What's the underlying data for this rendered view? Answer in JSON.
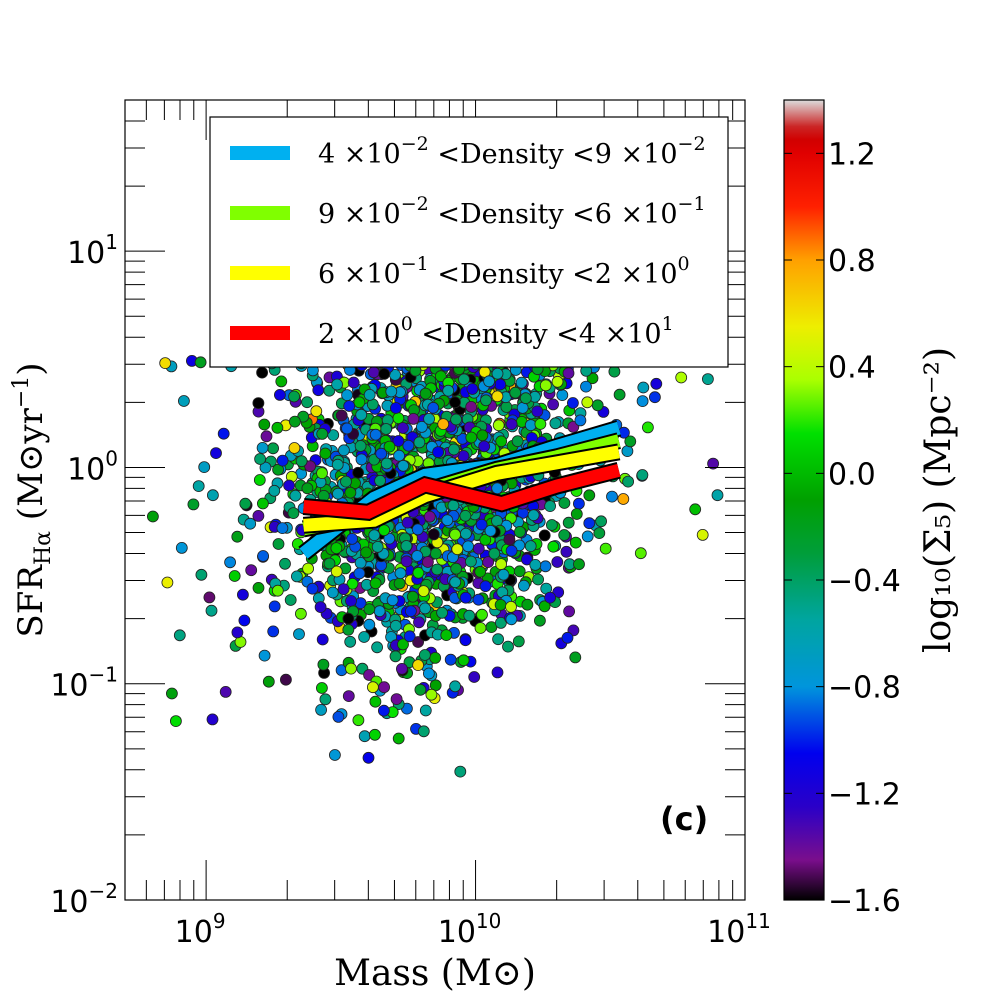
{
  "chart_data": {
    "type": "scatter",
    "xscale": "log",
    "yscale": "log",
    "xlim": [
      500000000.0,
      100000000000.0
    ],
    "ylim": [
      0.01,
      50
    ],
    "xlabel": "Mass (M⊙)",
    "ylabel": "SFR",
    "ylabel_sub": "Hα",
    "ylabel_units": "(M⊙yr",
    "ylabel_units_sup": "−1",
    "ylabel_units_close": ")",
    "x_ticks": [
      {
        "value": 1000000000.0,
        "base": "10",
        "exp": "9"
      },
      {
        "value": 10000000000.0,
        "base": "10",
        "exp": "10"
      },
      {
        "value": 100000000000.0,
        "base": "10",
        "exp": "11"
      }
    ],
    "y_ticks": [
      {
        "value": 0.01,
        "base": "10",
        "exp": "−2"
      },
      {
        "value": 0.1,
        "base": "10",
        "exp": "−1"
      },
      {
        "value": 1,
        "base": "10",
        "exp": "0"
      },
      {
        "value": 10,
        "base": "10",
        "exp": "1"
      }
    ],
    "panel_label": "(c)",
    "colorbar": {
      "label": "log₁₀(Σ₅)  (Mpc⁻²)",
      "range": [
        -1.6,
        1.4
      ],
      "ticks": [
        "1.2",
        "0.8",
        "0.4",
        "0.0",
        "−0.4",
        "−0.8",
        "−1.2",
        "−1.6"
      ],
      "tick_values": [
        1.2,
        0.8,
        0.4,
        0.0,
        -0.4,
        -0.8,
        -1.2,
        -1.6
      ],
      "colormap_stops": [
        {
          "v": -1.6,
          "color": "#000000"
        },
        {
          "v": -1.45,
          "color": "#7a0e8c"
        },
        {
          "v": -1.25,
          "color": "#2a00c8"
        },
        {
          "v": -1.05,
          "color": "#0000ee"
        },
        {
          "v": -0.8,
          "color": "#0095dc"
        },
        {
          "v": -0.55,
          "color": "#00a5a0"
        },
        {
          "v": -0.3,
          "color": "#009e3a"
        },
        {
          "v": -0.1,
          "color": "#00a000"
        },
        {
          "v": 0.15,
          "color": "#00e000"
        },
        {
          "v": 0.35,
          "color": "#aaff00"
        },
        {
          "v": 0.55,
          "color": "#eeee00"
        },
        {
          "v": 0.8,
          "color": "#ffa000"
        },
        {
          "v": 1.0,
          "color": "#ff2000"
        },
        {
          "v": 1.2,
          "color": "#e00000"
        },
        {
          "v": 1.28,
          "color": "#c80000"
        },
        {
          "v": 1.4,
          "color": "#dddddd"
        }
      ]
    },
    "series": [
      {
        "name": "4 ×10⁻² <Density <9 ×10⁻²",
        "color": "#00b0f0",
        "x": [
          2300000000.0,
          4200000000.0,
          6500000000.0,
          12000000000.0,
          20000000000.0,
          34000000000.0
        ],
        "y": [
          0.4,
          0.72,
          0.92,
          1.02,
          1.25,
          1.52
        ]
      },
      {
        "name": "9 ×10⁻² <Density <6 ×10⁻¹",
        "color": "#80ff00",
        "x": [
          2300000000.0,
          4200000000.0,
          6500000000.0,
          12000000000.0,
          20000000000.0,
          34000000000.0
        ],
        "y": [
          0.52,
          0.6,
          0.78,
          0.98,
          1.12,
          1.33
        ]
      },
      {
        "name": "6 ×10⁻¹ <Density <2 ×10⁰",
        "color": "#ffff00",
        "x": [
          2300000000.0,
          4200000000.0,
          6500000000.0,
          12000000000.0,
          20000000000.0,
          34000000000.0
        ],
        "y": [
          0.54,
          0.57,
          0.74,
          0.94,
          1.05,
          1.18
        ]
      },
      {
        "name": "2 ×10⁰ <Density <4 ×10¹",
        "color": "#ff0000",
        "x": [
          2300000000.0,
          4000000000.0,
          6500000000.0,
          12500000000.0,
          20000000000.0,
          34000000000.0
        ],
        "y": [
          0.66,
          0.62,
          0.83,
          0.68,
          0.82,
          0.97
        ]
      }
    ],
    "legend": [
      {
        "base": "4 ×10",
        "exp": "−2",
        "mid": " <Density <9 ×10",
        "exp2": "−2",
        "color": "#00b0f0"
      },
      {
        "base": "9 ×10",
        "exp": "−2",
        "mid": " <Density <6 ×10",
        "exp2": "−1",
        "color": "#80ff00"
      },
      {
        "base": "6 ×10",
        "exp": "−1",
        "mid": " <Density <2 ×10",
        "exp2": "0",
        "color": "#ffff00"
      },
      {
        "base": "2 ×10",
        "exp": "0",
        "mid": " <Density <4 ×10",
        "exp2": "1",
        "color": "#ff0000"
      }
    ],
    "points_seed": 20240611,
    "points_count": 2100,
    "legend_placement": "top-center"
  }
}
